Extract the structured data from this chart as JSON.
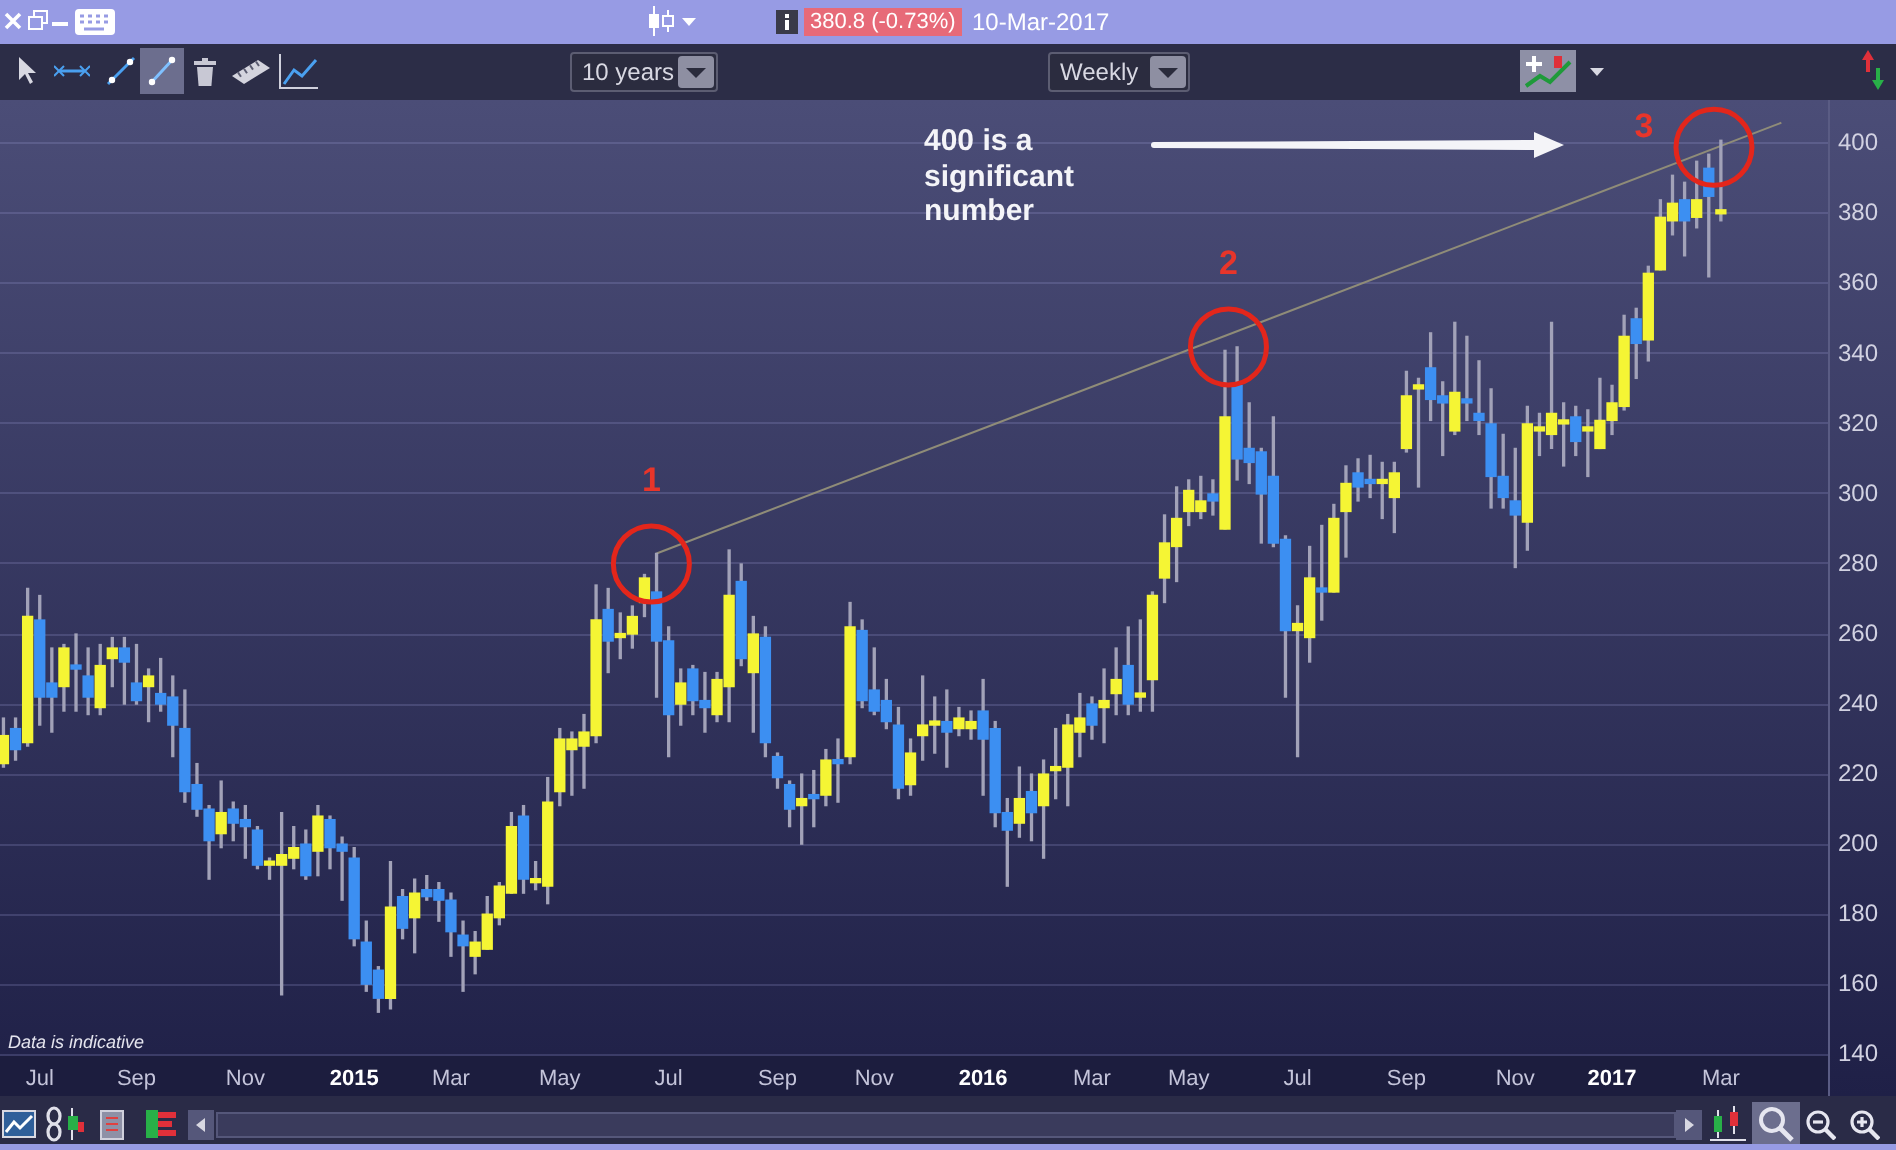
{
  "chart_data": {
    "type": "candlestick",
    "x": [
      "2014-06-16",
      "2014-06-23",
      "2014-06-30",
      "2014-07-07",
      "2014-07-14",
      "2014-07-21",
      "2014-07-28",
      "2014-08-04",
      "2014-08-11",
      "2014-08-18",
      "2014-08-25",
      "2014-09-01",
      "2014-09-08",
      "2014-09-15",
      "2014-09-22",
      "2014-09-29",
      "2014-10-06",
      "2014-10-13",
      "2014-10-20",
      "2014-10-27",
      "2014-11-03",
      "2014-11-10",
      "2014-11-17",
      "2014-11-24",
      "2014-12-01",
      "2014-12-08",
      "2014-12-15",
      "2014-12-22",
      "2014-12-29",
      "2015-01-05",
      "2015-01-12",
      "2015-01-19",
      "2015-01-26",
      "2015-02-02",
      "2015-02-09",
      "2015-02-16",
      "2015-02-23",
      "2015-03-02",
      "2015-03-09",
      "2015-03-16",
      "2015-03-23",
      "2015-03-30",
      "2015-04-06",
      "2015-04-13",
      "2015-04-20",
      "2015-04-27",
      "2015-05-04",
      "2015-05-11",
      "2015-05-18",
      "2015-05-25",
      "2015-06-01",
      "2015-06-08",
      "2015-06-15",
      "2015-06-22",
      "2015-06-29",
      "2015-07-06",
      "2015-07-13",
      "2015-07-20",
      "2015-07-27",
      "2015-08-03",
      "2015-08-10",
      "2015-08-17",
      "2015-08-24",
      "2015-08-31",
      "2015-09-07",
      "2015-09-14",
      "2015-09-21",
      "2015-09-28",
      "2015-10-05",
      "2015-10-12",
      "2015-10-19",
      "2015-10-26",
      "2015-11-02",
      "2015-11-09",
      "2015-11-16",
      "2015-11-23",
      "2015-11-30",
      "2015-12-07",
      "2015-12-14",
      "2015-12-21",
      "2015-12-28",
      "2016-01-04",
      "2016-01-11",
      "2016-01-18",
      "2016-01-25",
      "2016-02-01",
      "2016-02-08",
      "2016-02-15",
      "2016-02-22",
      "2016-02-29",
      "2016-03-07",
      "2016-03-14",
      "2016-03-21",
      "2016-03-28",
      "2016-04-04",
      "2016-04-11",
      "2016-04-18",
      "2016-04-25",
      "2016-05-02",
      "2016-05-09",
      "2016-05-16",
      "2016-05-23",
      "2016-05-30",
      "2016-06-06",
      "2016-06-13",
      "2016-06-20",
      "2016-06-27",
      "2016-07-04",
      "2016-07-11",
      "2016-07-18",
      "2016-07-25",
      "2016-08-01",
      "2016-08-08",
      "2016-08-15",
      "2016-08-22",
      "2016-08-29",
      "2016-09-05",
      "2016-09-12",
      "2016-09-19",
      "2016-09-26",
      "2016-10-03",
      "2016-10-10",
      "2016-10-17",
      "2016-10-24",
      "2016-10-31",
      "2016-11-07",
      "2016-11-14",
      "2016-11-21",
      "2016-11-28",
      "2016-12-05",
      "2016-12-12",
      "2016-12-19",
      "2016-12-26",
      "2017-01-02",
      "2017-01-09",
      "2017-01-16",
      "2017-01-23",
      "2017-01-30",
      "2017-02-06",
      "2017-02-13",
      "2017-02-20",
      "2017-02-27",
      "2017-03-06"
    ],
    "ohlc": [
      [
        223,
        236,
        222,
        231
      ],
      [
        233,
        236,
        224,
        227
      ],
      [
        229,
        273,
        228,
        265
      ],
      [
        264,
        271,
        234,
        242
      ],
      [
        246,
        256,
        232,
        242
      ],
      [
        245,
        257,
        238,
        256
      ],
      [
        251,
        260,
        238,
        250
      ],
      [
        248,
        256,
        237,
        242
      ],
      [
        239,
        257,
        237,
        251
      ],
      [
        253,
        259,
        245,
        256
      ],
      [
        256,
        259,
        240,
        252
      ],
      [
        246,
        257,
        240,
        241
      ],
      [
        245,
        250,
        235,
        248
      ],
      [
        243,
        253,
        238,
        240
      ],
      [
        242,
        248,
        225,
        234
      ],
      [
        233,
        244,
        212,
        215
      ],
      [
        217,
        223,
        208,
        210
      ],
      [
        210,
        211,
        190,
        201
      ],
      [
        203,
        218,
        199,
        209
      ],
      [
        210,
        212,
        201,
        206
      ],
      [
        207,
        211,
        196,
        205
      ],
      [
        204,
        205,
        193,
        194
      ],
      [
        194,
        196,
        190,
        195
      ],
      [
        194,
        209,
        157,
        197
      ],
      [
        196,
        205,
        193,
        199
      ],
      [
        200,
        204,
        190,
        191
      ],
      [
        198,
        211,
        191,
        208
      ],
      [
        207,
        208,
        193,
        199
      ],
      [
        200,
        202,
        184,
        198
      ],
      [
        196,
        199,
        171,
        173
      ],
      [
        172,
        178,
        158,
        160
      ],
      [
        164,
        165,
        152,
        156
      ],
      [
        156,
        195,
        153,
        182
      ],
      [
        185,
        187,
        173,
        176
      ],
      [
        179,
        190,
        169,
        186
      ],
      [
        187,
        191,
        184,
        185
      ],
      [
        187,
        189,
        178,
        184
      ],
      [
        184,
        186,
        168,
        175
      ],
      [
        174,
        178,
        158,
        171
      ],
      [
        168,
        175,
        163,
        172
      ],
      [
        170,
        185,
        170,
        180
      ],
      [
        179,
        189,
        177,
        188
      ],
      [
        186,
        209,
        186,
        205
      ],
      [
        208,
        211,
        186,
        190
      ],
      [
        189,
        195,
        187,
        190
      ],
      [
        188,
        219,
        183,
        212
      ],
      [
        215,
        233,
        211,
        230
      ],
      [
        227,
        232,
        214,
        230
      ],
      [
        228,
        237,
        216,
        232
      ],
      [
        231,
        274,
        229,
        264
      ],
      [
        267,
        273,
        249,
        258
      ],
      [
        259,
        266,
        253,
        260
      ],
      [
        260,
        268,
        256,
        265
      ],
      [
        269,
        277,
        265,
        276
      ],
      [
        272,
        283,
        242,
        258
      ],
      [
        258,
        262,
        225,
        237
      ],
      [
        240,
        250,
        234,
        246
      ],
      [
        250,
        251,
        237,
        241
      ],
      [
        241,
        249,
        232,
        239
      ],
      [
        237,
        249,
        235,
        247
      ],
      [
        245,
        284,
        235,
        271
      ],
      [
        275,
        280,
        251,
        253
      ],
      [
        249,
        265,
        232,
        260
      ],
      [
        259,
        262,
        225,
        229
      ],
      [
        225,
        226,
        216,
        219
      ],
      [
        217,
        218,
        205,
        210
      ],
      [
        211,
        220,
        200,
        213
      ],
      [
        214,
        221,
        205,
        213
      ],
      [
        214,
        227,
        211,
        224
      ],
      [
        224,
        230,
        212,
        223
      ],
      [
        225,
        269,
        223,
        262
      ],
      [
        261,
        264,
        239,
        241
      ],
      [
        244,
        256,
        237,
        238
      ],
      [
        241,
        247,
        233,
        235
      ],
      [
        234,
        239,
        213,
        216
      ],
      [
        217,
        230,
        214,
        226
      ],
      [
        231,
        248,
        224,
        234
      ],
      [
        234,
        242,
        226,
        235
      ],
      [
        235,
        244,
        222,
        232
      ],
      [
        233,
        239,
        231,
        236
      ],
      [
        233,
        238,
        230,
        235
      ],
      [
        238,
        247,
        214,
        230
      ],
      [
        233,
        235,
        205,
        209
      ],
      [
        209,
        213,
        188,
        204
      ],
      [
        206,
        222,
        202,
        213
      ],
      [
        215,
        220,
        201,
        209
      ],
      [
        211,
        224,
        196,
        220
      ],
      [
        221,
        233,
        213,
        222
      ],
      [
        222,
        237,
        211,
        234
      ],
      [
        232,
        243,
        225,
        236
      ],
      [
        240,
        242,
        230,
        234
      ],
      [
        239,
        250,
        229,
        241
      ],
      [
        243,
        256,
        237,
        247
      ],
      [
        251,
        262,
        237,
        240
      ],
      [
        242,
        264,
        238,
        243
      ],
      [
        247,
        272,
        238,
        271
      ],
      [
        276,
        294,
        269,
        286
      ],
      [
        285,
        302,
        275,
        293
      ],
      [
        295,
        304,
        291,
        301
      ],
      [
        295,
        305,
        293,
        298
      ],
      [
        300,
        304,
        294,
        298
      ],
      [
        290,
        341,
        290,
        322
      ],
      [
        331,
        342,
        304,
        310
      ],
      [
        313,
        326,
        303,
        309
      ],
      [
        312,
        313,
        286,
        300
      ],
      [
        305,
        322,
        285,
        286
      ],
      [
        287,
        288,
        242,
        261
      ],
      [
        261,
        268,
        225,
        263
      ],
      [
        259,
        285,
        252,
        276
      ],
      [
        273,
        291,
        264,
        272
      ],
      [
        272,
        297,
        272,
        293
      ],
      [
        295,
        308,
        282,
        303
      ],
      [
        306,
        310,
        298,
        302
      ],
      [
        304,
        311,
        299,
        303
      ],
      [
        303,
        309,
        293,
        304
      ],
      [
        299,
        309,
        289,
        306
      ],
      [
        313,
        335,
        312,
        328
      ],
      [
        330,
        333,
        302,
        331
      ],
      [
        336,
        346,
        321,
        327
      ],
      [
        328,
        332,
        311,
        326
      ],
      [
        318,
        349,
        317,
        329
      ],
      [
        327,
        345,
        321,
        326
      ],
      [
        323,
        338,
        317,
        321
      ],
      [
        320,
        330,
        296,
        305
      ],
      [
        305,
        317,
        296,
        299
      ],
      [
        298,
        313,
        279,
        294
      ],
      [
        292,
        325,
        284,
        320
      ],
      [
        318,
        323,
        311,
        319
      ],
      [
        317,
        349,
        313,
        323
      ],
      [
        320,
        326,
        308,
        321
      ],
      [
        322,
        325,
        311,
        315
      ],
      [
        318,
        324,
        305,
        319
      ],
      [
        313,
        333,
        313,
        321
      ],
      [
        321,
        331,
        317,
        326
      ],
      [
        325,
        351,
        324,
        345
      ],
      [
        350,
        353,
        333,
        343
      ],
      [
        344,
        365,
        338,
        363
      ],
      [
        364,
        384,
        364,
        379
      ],
      [
        378,
        391,
        374,
        383
      ],
      [
        384,
        389,
        368,
        378
      ],
      [
        379,
        395,
        376,
        384
      ],
      [
        393,
        397,
        362,
        385
      ],
      [
        380,
        401,
        378,
        381
      ]
    ],
    "colors": [
      "#f5f534",
      "#3c8ff2",
      "#f5f534",
      "#3c8ff2",
      "#3c8ff2",
      "#f5f534",
      "#3c8ff2",
      "#3c8ff2",
      "#f5f534",
      "#f5f534",
      "#3c8ff2",
      "#3c8ff2",
      "#f5f534",
      "#3c8ff2",
      "#3c8ff2",
      "#3c8ff2",
      "#3c8ff2",
      "#3c8ff2",
      "#f5f534",
      "#3c8ff2",
      "#3c8ff2",
      "#3c8ff2",
      "#f5f534",
      "#f5f534",
      "#f5f534",
      "#3c8ff2",
      "#f5f534",
      "#3c8ff2",
      "#3c8ff2",
      "#3c8ff2",
      "#3c8ff2",
      "#3c8ff2",
      "#f5f534",
      "#3c8ff2",
      "#f5f534",
      "#3c8ff2",
      "#3c8ff2",
      "#3c8ff2",
      "#3c8ff2",
      "#f5f534",
      "#f5f534",
      "#f5f534",
      "#f5f534",
      "#3c8ff2",
      "#f5f534",
      "#f5f534",
      "#f5f534",
      "#f5f534",
      "#f5f534",
      "#f5f534",
      "#3c8ff2",
      "#f5f534",
      "#f5f534",
      "#f5f534",
      "#3c8ff2",
      "#3c8ff2",
      "#f5f534",
      "#3c8ff2",
      "#3c8ff2",
      "#f5f534",
      "#f5f534",
      "#3c8ff2",
      "#f5f534",
      "#3c8ff2",
      "#3c8ff2",
      "#3c8ff2",
      "#f5f534",
      "#3c8ff2",
      "#f5f534",
      "#3c8ff2",
      "#f5f534",
      "#3c8ff2",
      "#3c8ff2",
      "#3c8ff2",
      "#3c8ff2",
      "#f5f534",
      "#f5f534",
      "#f5f534",
      "#3c8ff2",
      "#f5f534",
      "#f5f534",
      "#3c8ff2",
      "#3c8ff2",
      "#3c8ff2",
      "#f5f534",
      "#3c8ff2",
      "#f5f534",
      "#f5f534",
      "#f5f534",
      "#f5f534",
      "#3c8ff2",
      "#f5f534",
      "#f5f534",
      "#3c8ff2",
      "#f5f534",
      "#f5f534",
      "#f5f534",
      "#f5f534",
      "#f5f534",
      "#f5f534",
      "#3c8ff2",
      "#f5f534",
      "#3c8ff2",
      "#3c8ff2",
      "#3c8ff2",
      "#3c8ff2",
      "#3c8ff2",
      "#f5f534",
      "#f5f534",
      "#3c8ff2",
      "#f5f534",
      "#f5f534",
      "#3c8ff2",
      "#3c8ff2",
      "#f5f534",
      "#f5f534",
      "#f5f534",
      "#f5f534",
      "#3c8ff2",
      "#3c8ff2",
      "#f5f534",
      "#3c8ff2",
      "#3c8ff2",
      "#3c8ff2",
      "#3c8ff2",
      "#3c8ff2",
      "#f5f534",
      "#f5f534",
      "#f5f534",
      "#f5f534",
      "#3c8ff2",
      "#f5f534",
      "#f5f534",
      "#f5f534",
      "#f5f534",
      "#3c8ff2",
      "#f5f534",
      "#f5f534",
      "#f5f534",
      "#3c8ff2",
      "#f5f534",
      "#3c8ff2",
      "#f5f534"
    ],
    "series": [
      {
        "type": "line",
        "x": [
          "2015-06-29",
          "2017-04-10"
        ],
        "values": [
          283,
          406
        ],
        "color": "#8f8c78"
      }
    ],
    "xlim": [
      "2014-06-14",
      "2017-05-07"
    ],
    "xticks": [
      {
        "value": "2014-07-07",
        "label": "Jul"
      },
      {
        "value": "2014-09-01",
        "label": "Sep"
      },
      {
        "value": "2014-11-03",
        "label": "Nov"
      },
      {
        "value": "2015-01-05",
        "label": "2015"
      },
      {
        "value": "2015-03-02",
        "label": "Mar"
      },
      {
        "value": "2015-05-04",
        "label": "May"
      },
      {
        "value": "2015-07-06",
        "label": "Jul"
      },
      {
        "value": "2015-09-07",
        "label": "Sep"
      },
      {
        "value": "2015-11-02",
        "label": "Nov"
      },
      {
        "value": "2016-01-04",
        "label": "2016"
      },
      {
        "value": "2016-03-07",
        "label": "Mar"
      },
      {
        "value": "2016-05-02",
        "label": "May"
      },
      {
        "value": "2016-07-04",
        "label": "Jul"
      },
      {
        "value": "2016-09-05",
        "label": "Sep"
      },
      {
        "value": "2016-11-07",
        "label": "Nov"
      },
      {
        "value": "2017-01-02",
        "label": "2017"
      },
      {
        "value": "2017-03-06",
        "label": "Mar"
      }
    ],
    "ylim": [
      139.5,
      412.5
    ],
    "yticks": [
      140,
      160,
      180,
      200,
      220,
      240,
      260,
      280,
      300,
      320,
      340,
      360,
      380,
      400
    ],
    "grid": "y",
    "annotations": [
      "380.8 (-0.73%)",
      "10-Mar-2017",
      "10 years",
      "Weekly",
      "Data is indicative",
      "400 is a significant number",
      {
        "text": "1",
        "x": "2015-06-26",
        "y": 280
      },
      {
        "text": "2",
        "x": "2016-05-25",
        "y": 342
      },
      {
        "text": "3",
        "x": "2017-03-02",
        "y": 399
      }
    ]
  }
}
